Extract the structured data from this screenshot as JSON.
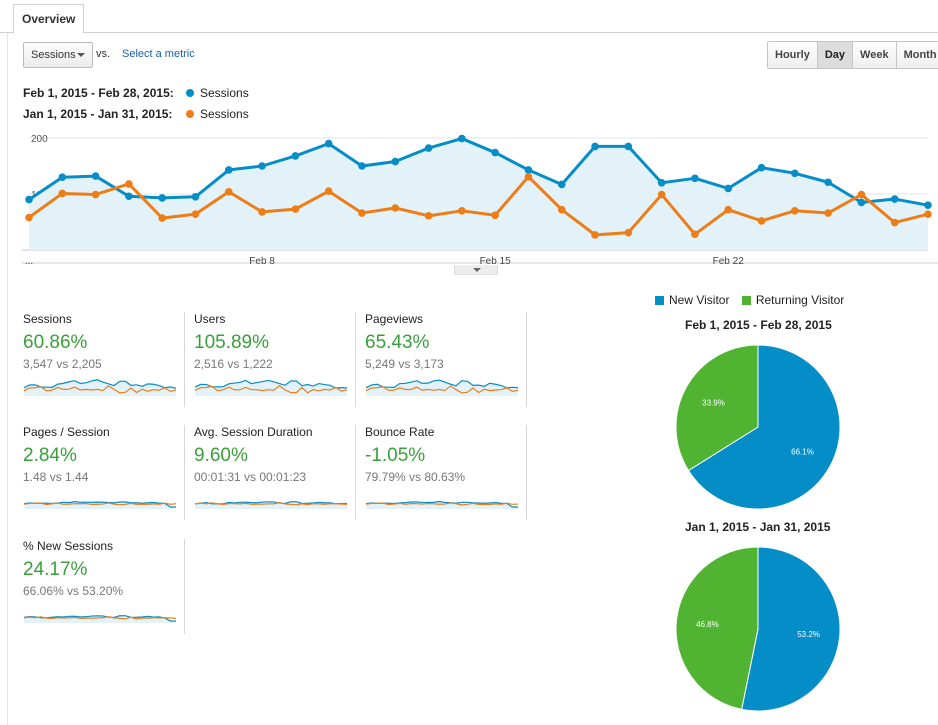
{
  "tabs": [
    {
      "label": "Overview",
      "active": true
    }
  ],
  "controls": {
    "metric_selected": "Sessions",
    "vs_label": "vs.",
    "select_metric_link": "Select a metric",
    "granularity": [
      {
        "label": "Hourly",
        "active": false
      },
      {
        "label": "Day",
        "active": true
      },
      {
        "label": "Week",
        "active": false
      },
      {
        "label": "Month",
        "active": false
      }
    ]
  },
  "legend": [
    {
      "range": "Feb 1, 2015 - Feb 28, 2015:",
      "label": "Sessions",
      "color": "#058dc7"
    },
    {
      "range": "Jan 1, 2015 - Jan 31, 2015:",
      "label": "Sessions",
      "color": "#ed7e17"
    }
  ],
  "chart_data": {
    "type": "line",
    "x_tick_labels": [
      "...",
      "Feb 8",
      "Feb 15",
      "Feb 22"
    ],
    "y_tick_labels": [
      "200",
      "100"
    ],
    "ylim": [
      0,
      200
    ],
    "grid": true,
    "series": [
      {
        "name": "Sessions",
        "color": "#058dc7",
        "area": true,
        "values": [
          90,
          130,
          132,
          96,
          93,
          95,
          143,
          150,
          168,
          190,
          150,
          158,
          182,
          199,
          174,
          143,
          117,
          185,
          185,
          120,
          128,
          110,
          147,
          137,
          121,
          85,
          91,
          80
        ]
      },
      {
        "name": "Sessions",
        "color": "#ed7e17",
        "area": false,
        "values": [
          58,
          101,
          99,
          118,
          57,
          64,
          104,
          68,
          73,
          105,
          66,
          75,
          61,
          70,
          62,
          131,
          72,
          27,
          31,
          99,
          28,
          72,
          52,
          70,
          66,
          99,
          49,
          64
        ]
      }
    ]
  },
  "metrics": [
    {
      "title": "Sessions",
      "change": "60.86%",
      "compare": "3,547 vs 2,205"
    },
    {
      "title": "Users",
      "change": "105.89%",
      "compare": "2,516 vs 1,222"
    },
    {
      "title": "Pageviews",
      "change": "65.43%",
      "compare": "5,249 vs 3,173"
    },
    {
      "title": "Pages / Session",
      "change": "2.84%",
      "compare": "1.48 vs 1.44"
    },
    {
      "title": "Avg. Session Duration",
      "change": "9.60%",
      "compare": "00:01:31 vs 00:01:23"
    },
    {
      "title": "Bounce Rate",
      "change": "-1.05%",
      "compare": "79.79% vs 80.63%"
    },
    {
      "title": "% New Sessions",
      "change": "24.17%",
      "compare": "66.06% vs 53.20%"
    }
  ],
  "pies": {
    "legend": [
      {
        "label": "New Visitor",
        "color": "#058dc7"
      },
      {
        "label": "Returning Visitor",
        "color": "#50b432"
      }
    ],
    "charts": [
      {
        "title": "Feb 1, 2015 - Feb 28, 2015",
        "slices": [
          {
            "label": "66.1%",
            "value": 66.1,
            "color": "#058dc7"
          },
          {
            "label": "33.9%",
            "value": 33.9,
            "color": "#50b432"
          }
        ]
      },
      {
        "title": "Jan 1, 2015 - Jan 31, 2015",
        "slices": [
          {
            "label": "53.2%",
            "value": 53.2,
            "color": "#058dc7"
          },
          {
            "label": "46.8%",
            "value": 46.8,
            "color": "#50b432"
          }
        ]
      }
    ]
  }
}
